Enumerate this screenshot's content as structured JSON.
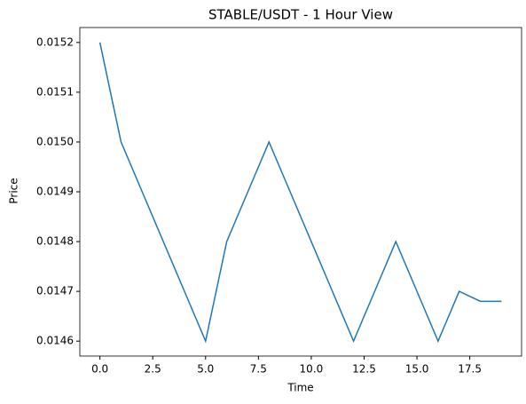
{
  "chart_data": {
    "type": "line",
    "title": "STABLE/USDT - 1 Hour View",
    "x_label": "Time",
    "y_label": "Price",
    "x": [
      0,
      1,
      2,
      3,
      4,
      5,
      6,
      7,
      8,
      9,
      10,
      11,
      12,
      13,
      14,
      15,
      16,
      17,
      18,
      19
    ],
    "series": [
      {
        "name": "Price",
        "color": "#1f77b4",
        "values": [
          0.0152,
          0.015,
          0.0149,
          0.0148,
          0.0147,
          0.0146,
          0.0148,
          0.0149,
          0.015,
          0.0149,
          0.0148,
          0.0147,
          0.0146,
          0.0147,
          0.0148,
          0.0147,
          0.0146,
          0.0147,
          0.01468,
          0.01468
        ]
      }
    ],
    "xlim": [
      -0.95,
      19.95
    ],
    "xticks": [
      {
        "value": 0,
        "label": "0.0"
      },
      {
        "value": 2.5,
        "label": "2.5"
      },
      {
        "value": 5,
        "label": "5.0"
      },
      {
        "value": 7.5,
        "label": "7.5"
      },
      {
        "value": 10,
        "label": "10.0"
      },
      {
        "value": 12.5,
        "label": "12.5"
      },
      {
        "value": 15,
        "label": "15.0"
      },
      {
        "value": 17.5,
        "label": "17.5"
      }
    ],
    "ylim": [
      0.01457,
      0.01523
    ],
    "yticks": [
      0.0146,
      0.0147,
      0.0148,
      0.0149,
      {
        "value": 0.015,
        "label": "0.0150"
      },
      0.0151,
      0.0152
    ],
    "grid": false
  }
}
